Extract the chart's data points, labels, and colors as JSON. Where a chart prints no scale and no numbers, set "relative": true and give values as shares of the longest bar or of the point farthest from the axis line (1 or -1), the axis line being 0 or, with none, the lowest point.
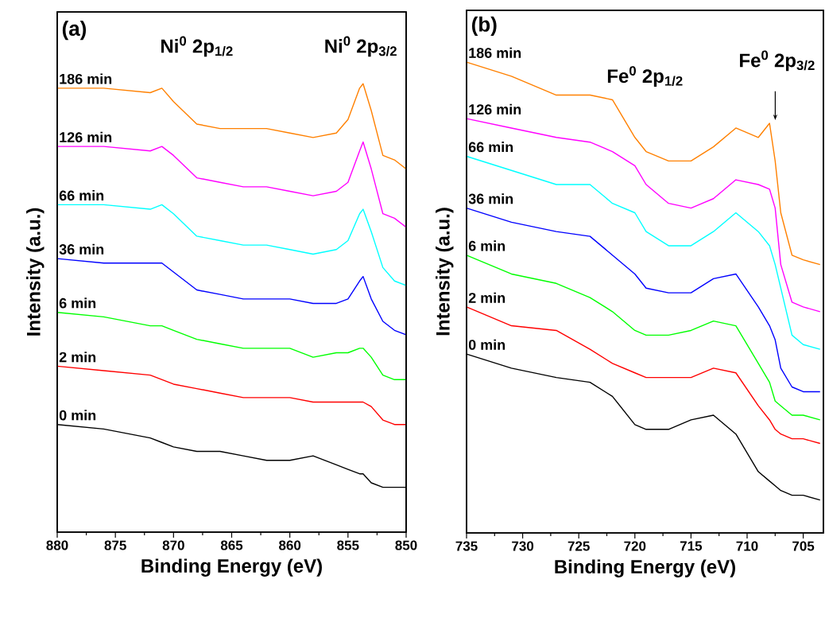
{
  "chart_data": [
    {
      "type": "line",
      "relative": true,
      "xlabel": "Binding Energy (eV)",
      "ylabel": "Intensity (a.u.)",
      "annotations": [
        "(a)",
        "Ni$^{0}$ 2p$_{1/2}$",
        "Ni$^{0}$ 2p$_{3/2}$"
      ],
      "x": [
        880,
        876,
        872,
        871,
        870,
        868,
        866,
        864,
        862,
        860,
        858,
        856,
        855,
        854,
        853.7,
        853,
        852,
        851,
        850
      ],
      "xlim": [
        880,
        850
      ],
      "xticks": [
        880,
        875,
        870,
        865,
        860,
        855,
        850
      ],
      "tick_labels": "x",
      "series": [
        {
          "name": "186 min",
          "color": "#ff8000",
          "values": [
            0.99,
            0.99,
            0.98,
            0.99,
            0.96,
            0.91,
            0.9,
            0.9,
            0.9,
            0.89,
            0.88,
            0.89,
            0.92,
            0.99,
            1.0,
            0.94,
            0.84,
            0.83,
            0.81
          ]
        },
        {
          "name": "126 min",
          "color": "#ff00ff",
          "values": [
            0.86,
            0.86,
            0.85,
            0.86,
            0.84,
            0.79,
            0.78,
            0.77,
            0.77,
            0.76,
            0.75,
            0.76,
            0.78,
            0.85,
            0.87,
            0.81,
            0.71,
            0.7,
            0.68
          ]
        },
        {
          "name": "66 min",
          "color": "#00ffff",
          "values": [
            0.73,
            0.73,
            0.72,
            0.73,
            0.71,
            0.66,
            0.65,
            0.64,
            0.64,
            0.63,
            0.62,
            0.63,
            0.65,
            0.71,
            0.72,
            0.67,
            0.59,
            0.56,
            0.55
          ]
        },
        {
          "name": "36 min",
          "color": "#0000ff",
          "values": [
            0.61,
            0.6,
            0.6,
            0.6,
            0.58,
            0.54,
            0.53,
            0.52,
            0.52,
            0.52,
            0.51,
            0.51,
            0.52,
            0.56,
            0.57,
            0.52,
            0.47,
            0.45,
            0.44
          ]
        },
        {
          "name": "6 min",
          "color": "#00ff00",
          "values": [
            0.49,
            0.48,
            0.46,
            0.46,
            0.45,
            0.43,
            0.42,
            0.41,
            0.41,
            0.41,
            0.39,
            0.4,
            0.4,
            0.41,
            0.41,
            0.39,
            0.35,
            0.34,
            0.34
          ]
        },
        {
          "name": "2 min",
          "color": "#ff0000",
          "values": [
            0.37,
            0.36,
            0.35,
            0.34,
            0.33,
            0.32,
            0.31,
            0.3,
            0.3,
            0.3,
            0.29,
            0.29,
            0.29,
            0.29,
            0.29,
            0.28,
            0.25,
            0.24,
            0.24
          ]
        },
        {
          "name": "0 min",
          "color": "#000000",
          "values": [
            0.24,
            0.23,
            0.21,
            0.2,
            0.19,
            0.18,
            0.18,
            0.17,
            0.16,
            0.16,
            0.17,
            0.15,
            0.14,
            0.13,
            0.13,
            0.11,
            0.1,
            0.1,
            0.1
          ]
        }
      ]
    },
    {
      "type": "line",
      "relative": true,
      "xlabel": "Binding Energy (eV)",
      "ylabel": "Intensity (a.u.)",
      "annotations": [
        "(b)",
        "Fe$^{0}$ 2p$_{1/2}$",
        "Fe$^{0}$ 2p$_{3/2}$"
      ],
      "x": [
        735,
        731,
        727,
        724,
        722,
        720,
        719,
        717,
        715,
        713,
        711,
        709,
        708,
        707.5,
        707,
        706,
        705,
        703.5
      ],
      "xlim": [
        735,
        703.2
      ],
      "xticks": [
        735,
        730,
        725,
        720,
        715,
        710,
        705
      ],
      "tick_labels": "x",
      "series": [
        {
          "name": "186 min",
          "color": "#ff8000",
          "values": [
            1.0,
            0.97,
            0.93,
            0.93,
            0.92,
            0.84,
            0.81,
            0.79,
            0.79,
            0.82,
            0.86,
            0.84,
            0.87,
            0.79,
            0.68,
            0.59,
            0.58,
            0.57
          ]
        },
        {
          "name": "126 min",
          "color": "#ff00ff",
          "values": [
            0.88,
            0.86,
            0.84,
            0.83,
            0.81,
            0.78,
            0.74,
            0.7,
            0.69,
            0.71,
            0.75,
            0.74,
            0.73,
            0.69,
            0.57,
            0.49,
            0.48,
            0.47
          ]
        },
        {
          "name": "66 min",
          "color": "#00ffff",
          "values": [
            0.8,
            0.77,
            0.74,
            0.74,
            0.7,
            0.68,
            0.64,
            0.61,
            0.61,
            0.64,
            0.68,
            0.64,
            0.61,
            0.57,
            0.52,
            0.42,
            0.4,
            0.39
          ]
        },
        {
          "name": "36 min",
          "color": "#0000ff",
          "values": [
            0.69,
            0.66,
            0.64,
            0.63,
            0.59,
            0.55,
            0.52,
            0.51,
            0.51,
            0.54,
            0.55,
            0.48,
            0.44,
            0.41,
            0.35,
            0.31,
            0.3,
            0.3
          ]
        },
        {
          "name": "6 min",
          "color": "#00ff00",
          "values": [
            0.59,
            0.55,
            0.53,
            0.5,
            0.47,
            0.43,
            0.42,
            0.42,
            0.43,
            0.45,
            0.44,
            0.36,
            0.32,
            0.28,
            0.27,
            0.25,
            0.25,
            0.24
          ]
        },
        {
          "name": "2 min",
          "color": "#ff0000",
          "values": [
            0.48,
            0.44,
            0.43,
            0.39,
            0.36,
            0.34,
            0.33,
            0.33,
            0.33,
            0.35,
            0.34,
            0.27,
            0.24,
            0.22,
            0.21,
            0.2,
            0.2,
            0.19
          ]
        },
        {
          "name": "0 min",
          "color": "#000000",
          "values": [
            0.38,
            0.35,
            0.33,
            0.32,
            0.29,
            0.23,
            0.22,
            0.22,
            0.24,
            0.25,
            0.21,
            0.13,
            0.11,
            0.1,
            0.09,
            0.08,
            0.08,
            0.07
          ]
        }
      ]
    }
  ]
}
